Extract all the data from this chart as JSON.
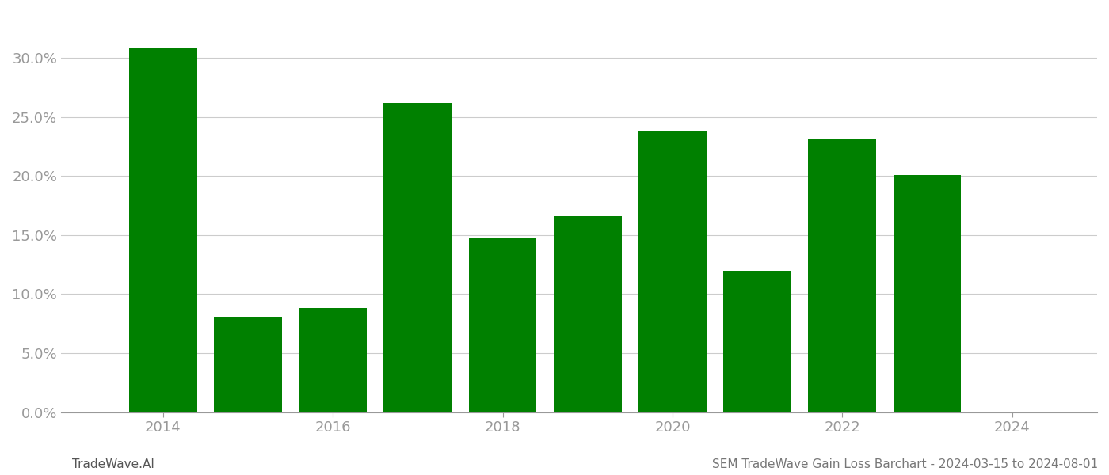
{
  "years": [
    2014,
    2015,
    2016,
    2017,
    2018,
    2019,
    2020,
    2021,
    2022,
    2023
  ],
  "values": [
    0.308,
    0.08,
    0.088,
    0.262,
    0.148,
    0.166,
    0.238,
    0.12,
    0.231,
    0.201
  ],
  "bar_color": "#008000",
  "background_color": "#ffffff",
  "ylim": [
    0,
    0.335
  ],
  "yticks": [
    0.0,
    0.05,
    0.1,
    0.15,
    0.2,
    0.25,
    0.3
  ],
  "xticks": [
    2014,
    2016,
    2018,
    2020,
    2022,
    2024
  ],
  "xlim_left": 2012.8,
  "xlim_right": 2025.0,
  "footer_left": "TradeWave.AI",
  "footer_right": "SEM TradeWave Gain Loss Barchart - 2024-03-15 to 2024-08-01",
  "grid_color": "#cccccc",
  "tick_label_color": "#999999",
  "footer_fontsize": 11,
  "bar_width": 0.8,
  "tick_fontsize": 13
}
